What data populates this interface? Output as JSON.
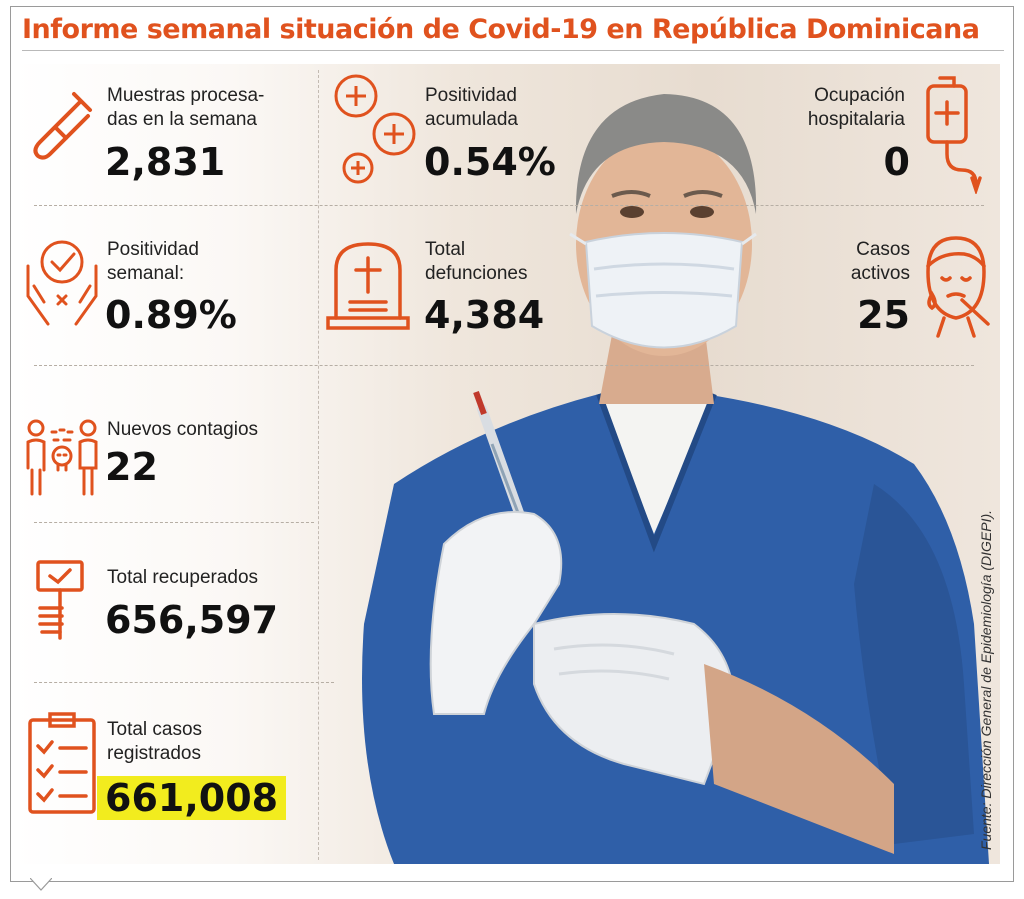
{
  "title": "Informe semanal situación de Covid-19 en República Dominicana",
  "accent_color": "#e0521e",
  "highlight_color": "#f2ec1e",
  "stats": {
    "muestras": {
      "label1": "Muestras procesa-",
      "label2": "das en la semana",
      "value": "2,831",
      "icon": "test-tube-icon"
    },
    "positividad_acumulada": {
      "label1": "Positividad",
      "label2": "acumulada",
      "value": "0.54%",
      "icon": "plus-circles-icon"
    },
    "ocupacion": {
      "label1": "Ocupación",
      "label2": "hospitalaria",
      "value": "0",
      "icon": "iv-bag-icon"
    },
    "positividad_semanal": {
      "label1": "Positividad",
      "label2": "semanal:",
      "value": "0.89%",
      "icon": "hands-check-icon"
    },
    "defunciones": {
      "label1": "Total",
      "label2": "defunciones",
      "value": "4,384",
      "icon": "tombstone-icon"
    },
    "casos_activos": {
      "label1": "Casos",
      "label2": "activos",
      "value": "25",
      "icon": "sick-face-icon"
    },
    "nuevos_contagios": {
      "label": "Nuevos contagios",
      "value": "22",
      "icon": "contagion-icon"
    },
    "recuperados": {
      "label": "Total recuperados",
      "value": "656,597",
      "icon": "hand-sign-icon"
    },
    "casos_registrados": {
      "label1": "Total casos",
      "label2": "registrados",
      "value": "661,008",
      "icon": "clipboard-checklist-icon"
    }
  },
  "source": "Fuente: Dirección General de Epidemiología (DIGEPI)."
}
